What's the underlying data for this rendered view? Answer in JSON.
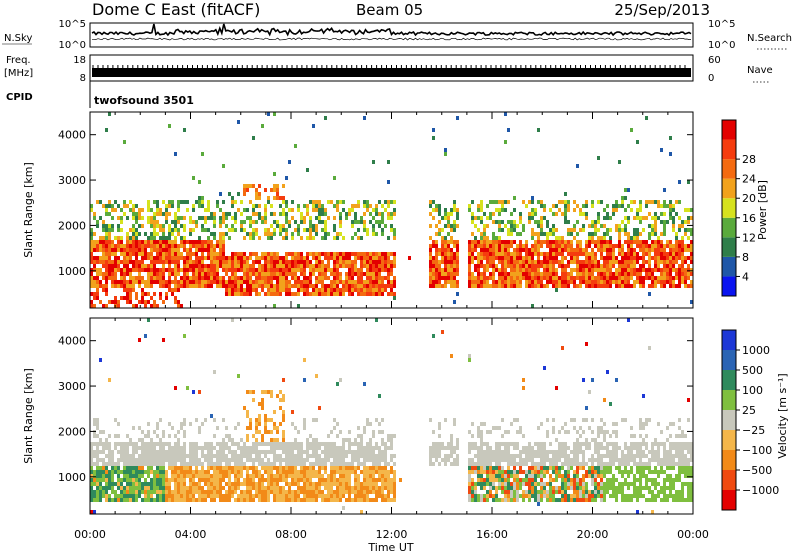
{
  "header": {
    "station": "Dome C East (fitACF)",
    "beam": "Beam 05",
    "date": "25/Sep/2013"
  },
  "colors": {
    "power": [
      "#0a14f0",
      "#1f57a8",
      "#2f7e4a",
      "#5aaa3c",
      "#d6e21e",
      "#f2a21c",
      "#f46a10",
      "#f53c0e",
      "#e30000"
    ],
    "velocity": [
      "#1c37d6",
      "#2a64b4",
      "#2f8a5c",
      "#7fbf3f",
      "#c8c8bc",
      "#f4b64a",
      "#f28a18",
      "#f04a10",
      "#e30000"
    ]
  },
  "chart_data": [
    {
      "type": "line",
      "name": "nsky-nsearch",
      "left_labels": {
        "title": "N.Sky",
        "ticks": [
          "10^5",
          "10^0"
        ]
      },
      "right_labels": {
        "title": "N.Search",
        "ticks": [
          "10^5",
          "10^0"
        ]
      }
    },
    {
      "type": "bar",
      "name": "freq-nave",
      "left_labels": {
        "title": "Freq.",
        "unit": "[MHz]",
        "ticks": [
          "18",
          "8"
        ]
      },
      "right_labels": {
        "title": "Nave",
        "ticks": [
          "60",
          "0"
        ]
      }
    },
    {
      "type": "heatmap",
      "name": "power",
      "cpid_label": "CPID",
      "cpid_value": "twofsound 3501",
      "ylabel": "Slant Range [km]",
      "ylim": [
        180,
        4500
      ],
      "yticks": [
        "1000",
        "2000",
        "3000",
        "4000"
      ],
      "colorbar": {
        "label": "Power [dB]",
        "ticks": [
          "4",
          "8",
          "12",
          "16",
          "20",
          "24",
          "28"
        ]
      }
    },
    {
      "type": "heatmap",
      "name": "velocity",
      "ylabel": "Slant Range [km]",
      "ylim": [
        180,
        4500
      ],
      "yticks": [
        "1000",
        "2000",
        "3000",
        "4000"
      ],
      "xticks": [
        "00:00",
        "04:00",
        "08:00",
        "12:00",
        "16:00",
        "20:00",
        "00:00"
      ],
      "xlabel": "Time UT",
      "colorbar": {
        "label": "Velocity [m s⁻¹]",
        "ticks": [
          "1000",
          "500",
          "100",
          "25",
          "−25",
          "−100",
          "−500",
          "−1000"
        ]
      }
    }
  ]
}
